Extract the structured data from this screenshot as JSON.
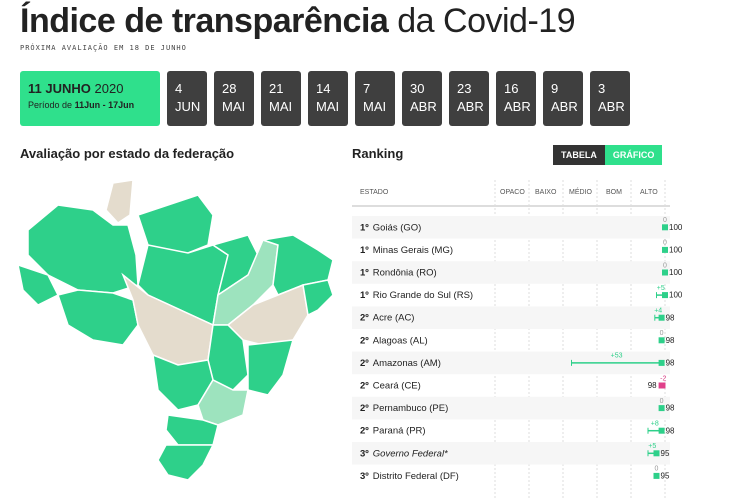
{
  "header": {
    "title_bold": "Índice de transparência",
    "title_rest": "da Covid-19",
    "subtitle": "PRÓXIMA AVALIAÇÃO EM 18 DE JUNHO"
  },
  "dates": {
    "active": {
      "day": "11 JUNHO",
      "year": "2020",
      "period_prefix": "Período de",
      "period": "11Jun - 17Jun"
    },
    "tabs": [
      {
        "day": "4",
        "month": "JUN"
      },
      {
        "day": "28",
        "month": "MAI"
      },
      {
        "day": "21",
        "month": "MAI"
      },
      {
        "day": "14",
        "month": "MAI"
      },
      {
        "day": "7",
        "month": "MAI"
      },
      {
        "day": "30",
        "month": "ABR"
      },
      {
        "day": "23",
        "month": "ABR"
      },
      {
        "day": "16",
        "month": "ABR"
      },
      {
        "day": "9",
        "month": "ABR"
      },
      {
        "day": "3",
        "month": "ABR"
      }
    ]
  },
  "map": {
    "title": "Avaliação por estado da federação"
  },
  "ranking": {
    "title": "Ranking",
    "toggles": [
      "TABELA",
      "GRÁFICO"
    ],
    "columns": [
      "ESTADO",
      "OPACO",
      "BAIXO",
      "MÉDIO",
      "BOM",
      "ALTO"
    ],
    "rows": [
      {
        "rank": "1º",
        "name": "Goiás (GO)",
        "score": 100,
        "change": 0
      },
      {
        "rank": "1º",
        "name": "Minas Gerais (MG)",
        "score": 100,
        "change": 0
      },
      {
        "rank": "1º",
        "name": "Rondônia (RO)",
        "score": 100,
        "change": 0
      },
      {
        "rank": "1º",
        "name": "Rio Grande do Sul (RS)",
        "score": 100,
        "change": 5,
        "change_label": "+5"
      },
      {
        "rank": "2º",
        "name": "Acre (AC)",
        "score": 98,
        "change": 4,
        "change_label": "+4"
      },
      {
        "rank": "2º",
        "name": "Alagoas (AL)",
        "score": 98,
        "change": 0
      },
      {
        "rank": "2º",
        "name": "Amazonas (AM)",
        "score": 98,
        "change": 53,
        "change_label": "+53"
      },
      {
        "rank": "2º",
        "name": "Ceará (CE)",
        "score": 98,
        "change": -2
      },
      {
        "rank": "2º",
        "name": "Pernambuco (PE)",
        "score": 98,
        "change": 0
      },
      {
        "rank": "2º",
        "name": "Paraná (PR)",
        "score": 98,
        "change": 8,
        "change_label": "+8"
      },
      {
        "rank": "3º",
        "name": "Governo Federal*",
        "score": 95,
        "change": 5,
        "change_label": "+5",
        "italic": true
      },
      {
        "rank": "3º",
        "name": "Distrito Federal (DF)",
        "score": 95,
        "change": 0
      }
    ]
  }
}
